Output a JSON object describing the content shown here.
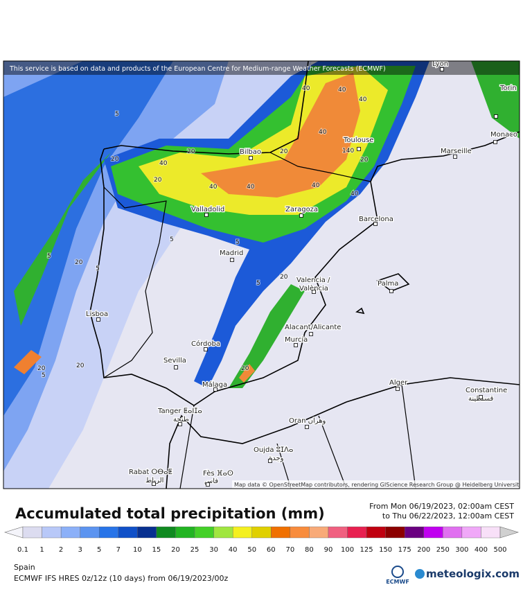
{
  "map": {
    "banner": "This service is based on data and products of the European Centre for Medium-range Weather Forecasts (ECMWF)",
    "attribution": "Map data © OpenStreetMap contributors, rendering GIScience Research Group @ Heidelberg University",
    "cities": [
      "Lyon",
      "Torin",
      "Toulouse",
      "Monaco",
      "Marseille",
      "Bilbao",
      "Valladolid",
      "Zaragoza",
      "Barcelona",
      "Madrid",
      "Valencia /",
      "València",
      "Palma",
      "Lisboa",
      "Alacant/Alicante",
      "Murcia",
      "Córdoba",
      "Sevilla",
      "Málaga",
      "Alger",
      "Constantine",
      "قسنطينة",
      "Tanger ⵟⴰⵏⵊⴰ",
      "طنجة",
      "Oran وهران",
      "Oujda ⵓⵊⴷⴰ",
      "وجدة",
      "Rabat ⵔⴱⴰⵟ",
      "الرباط",
      "Fès ⴼⴰⵙ",
      "فاس"
    ],
    "contour_labels": [
      "40",
      "40",
      "40",
      "40",
      "5",
      "20",
      "20",
      "40",
      "20",
      "40",
      "40",
      "40",
      "40",
      "20",
      "20",
      "5",
      "20",
      "5",
      "5",
      "5",
      "20",
      "5",
      "20",
      "5",
      "20",
      "20",
      "140"
    ]
  },
  "legend": {
    "title": "Accumulated total precipitation (mm)",
    "period_from": "From Mon 06/19/2023, 02:00am CEST",
    "period_to": "to Thu 06/22/2023, 12:00am CEST",
    "labels": [
      "0.1",
      "1",
      "2",
      "3",
      "5",
      "7",
      "10",
      "15",
      "20",
      "25",
      "30",
      "40",
      "50",
      "60",
      "70",
      "80",
      "90",
      "100",
      "125",
      "150",
      "175",
      "200",
      "250",
      "300",
      "400",
      "500"
    ],
    "colors": [
      "#dcdcf0",
      "#b8c8f8",
      "#8cb0f8",
      "#5c94f0",
      "#2874e8",
      "#1050c8",
      "#083090",
      "#108a20",
      "#22b422",
      "#44d028",
      "#a0e640",
      "#f4f020",
      "#e0d000",
      "#f07000",
      "#f88c3c",
      "#f8aa78",
      "#f06080",
      "#e82050",
      "#c00010",
      "#8c0000",
      "#6a0080",
      "#c000f0",
      "#e070f0",
      "#f0a8f8",
      "#f8e0f8",
      "#d0d0d0"
    ]
  },
  "footer": {
    "region": "Spain",
    "model": "ECMWF IFS HRES 0z/12z (10 days) from 06/19/2023/00z",
    "ecmwf": "ECMWF",
    "brand": "meteologix.com"
  }
}
